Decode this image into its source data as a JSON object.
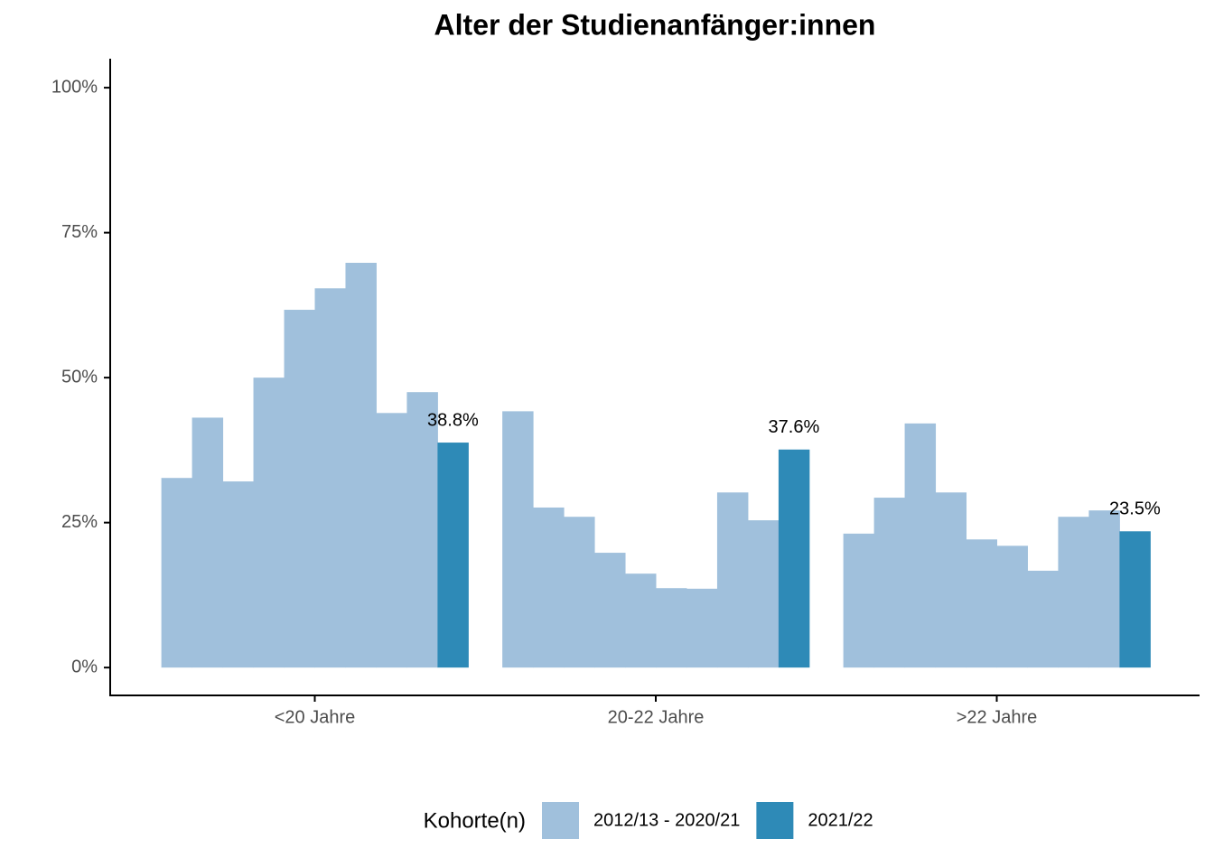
{
  "chart_data": {
    "type": "bar",
    "title": "Alter der Studienanfänger:innen",
    "categories": [
      "<20 Jahre",
      "20-22 Jahre",
      ">22 Jahre"
    ],
    "series": [
      {
        "name": "2012/13 - 2020/21",
        "color": "#a0c0dc",
        "values": [
          [
            32.7,
            43.1,
            32.1,
            50.0,
            61.7,
            65.4,
            69.8,
            43.9,
            47.5
          ],
          [
            44.2,
            27.6,
            26.0,
            19.8,
            16.2,
            13.7,
            13.6,
            30.2,
            25.4
          ],
          [
            23.1,
            29.3,
            42.1,
            30.2,
            22.1,
            21.0,
            16.7,
            26.0,
            27.1
          ]
        ]
      },
      {
        "name": "2021/22",
        "color": "#2e8ab7",
        "values": [
          38.8,
          37.6,
          23.5
        ],
        "value_labels": [
          "38.8%",
          "37.6%",
          "23.5%"
        ]
      }
    ],
    "ylim": [
      -4.8,
      105
    ],
    "yticks": [
      {
        "value": 0,
        "label": "0%"
      },
      {
        "value": 25,
        "label": "25%"
      },
      {
        "value": 50,
        "label": "50%"
      },
      {
        "value": 75,
        "label": "75%"
      },
      {
        "value": 100,
        "label": "100%"
      }
    ],
    "legend_title": "Kohorte(n)",
    "legend_position": "bottom",
    "grid": false
  }
}
